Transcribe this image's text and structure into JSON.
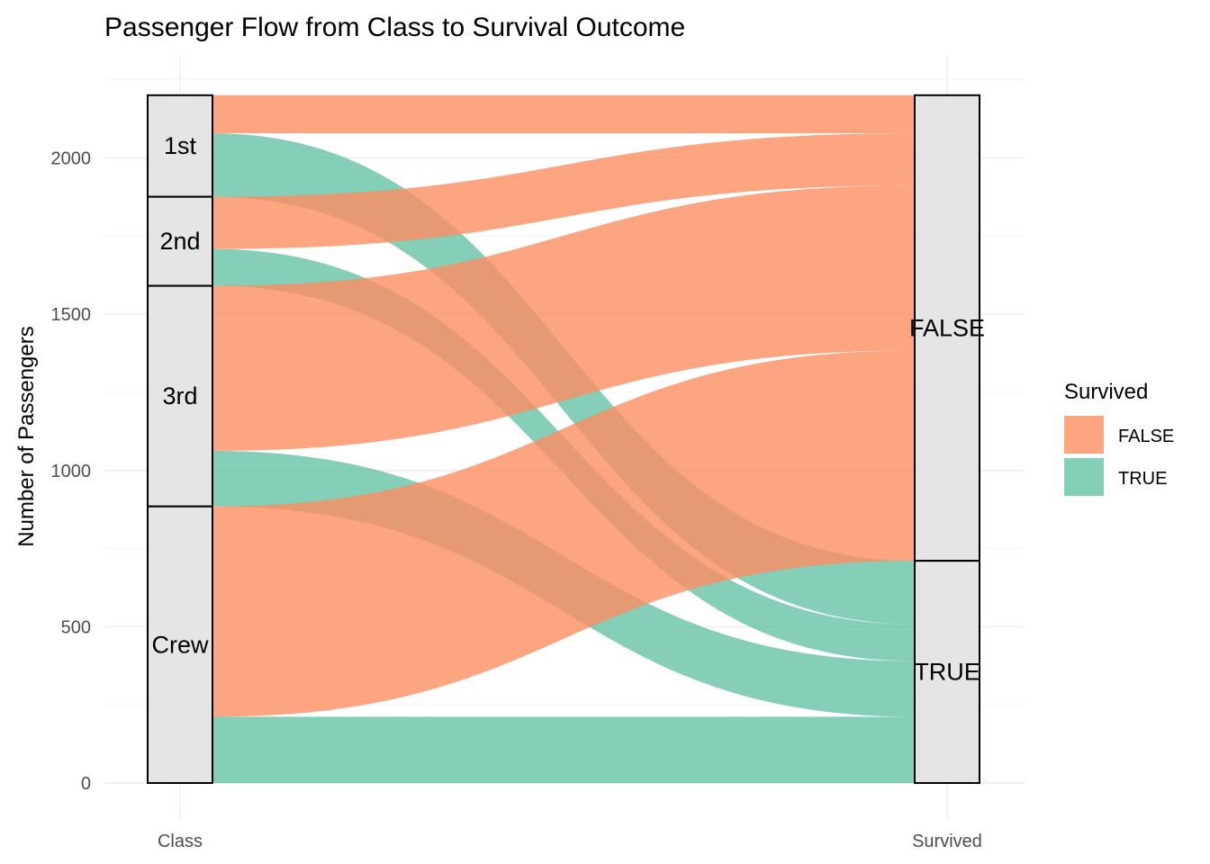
{
  "chart_data": {
    "type": "alluvial",
    "title": "Passenger Flow from Class to Survival Outcome",
    "ylabel": "Number of Passengers",
    "xlabel": "",
    "axes": [
      "Class",
      "Survived"
    ],
    "ylim": [
      0,
      2201
    ],
    "yticks": [
      0,
      500,
      1000,
      1500,
      2000
    ],
    "grid": true,
    "legend": {
      "title": "Survived",
      "placement": "right",
      "entries": [
        {
          "label": "FALSE",
          "color": "#fc8d62"
        },
        {
          "label": "TRUE",
          "color": "#66c2a5"
        }
      ]
    },
    "strata": {
      "Class": [
        "1st",
        "2nd",
        "3rd",
        "Crew"
      ],
      "Survived": [
        "FALSE",
        "TRUE"
      ]
    },
    "flows": [
      {
        "class": "1st",
        "survived": "FALSE",
        "value": 122
      },
      {
        "class": "1st",
        "survived": "TRUE",
        "value": 203
      },
      {
        "class": "2nd",
        "survived": "FALSE",
        "value": 167
      },
      {
        "class": "2nd",
        "survived": "TRUE",
        "value": 118
      },
      {
        "class": "3rd",
        "survived": "FALSE",
        "value": 528
      },
      {
        "class": "3rd",
        "survived": "TRUE",
        "value": 178
      },
      {
        "class": "Crew",
        "survived": "FALSE",
        "value": 673
      },
      {
        "class": "Crew",
        "survived": "TRUE",
        "value": 212
      }
    ]
  }
}
